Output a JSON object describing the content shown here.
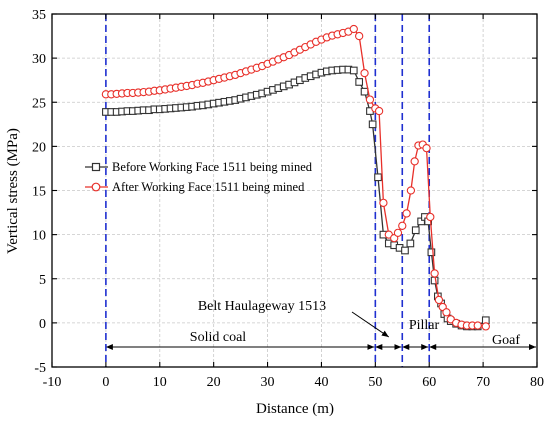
{
  "chart_data": {
    "type": "line",
    "title": "",
    "xlabel": "Distance (m)",
    "ylabel": "Vertical stress (MPa)",
    "xlim": [
      -10,
      80
    ],
    "ylim": [
      -5,
      35
    ],
    "xticks": [
      "-10",
      "0",
      "10",
      "20",
      "30",
      "40",
      "50",
      "60",
      "70",
      "80"
    ],
    "yticks": [
      "-5",
      "0",
      "5",
      "10",
      "15",
      "20",
      "25",
      "30",
      "35"
    ],
    "grid": true,
    "legend_position": "center-left",
    "boundary_lines_x": [
      0,
      50,
      55,
      60
    ],
    "boundary_line_color": "#1f2fd0",
    "series": [
      {
        "name": "Before Working Face 1511 being mined",
        "color": "#333333",
        "marker": "square",
        "points": [
          [
            0,
            23.9
          ],
          [
            1,
            23.9
          ],
          [
            2,
            23.9
          ],
          [
            3,
            23.95
          ],
          [
            4,
            24.0
          ],
          [
            5,
            24.0
          ],
          [
            6,
            24.05
          ],
          [
            7,
            24.1
          ],
          [
            8,
            24.1
          ],
          [
            9,
            24.2
          ],
          [
            10,
            24.2
          ],
          [
            11,
            24.25
          ],
          [
            12,
            24.3
          ],
          [
            13,
            24.35
          ],
          [
            14,
            24.4
          ],
          [
            15,
            24.45
          ],
          [
            16,
            24.5
          ],
          [
            17,
            24.6
          ],
          [
            18,
            24.65
          ],
          [
            19,
            24.75
          ],
          [
            20,
            24.85
          ],
          [
            21,
            24.95
          ],
          [
            22,
            25.05
          ],
          [
            23,
            25.15
          ],
          [
            24,
            25.25
          ],
          [
            25,
            25.4
          ],
          [
            26,
            25.55
          ],
          [
            27,
            25.7
          ],
          [
            28,
            25.85
          ],
          [
            29,
            26.0
          ],
          [
            30,
            26.2
          ],
          [
            31,
            26.4
          ],
          [
            32,
            26.6
          ],
          [
            33,
            26.8
          ],
          [
            34,
            27.0
          ],
          [
            35,
            27.25
          ],
          [
            36,
            27.5
          ],
          [
            37,
            27.75
          ],
          [
            38,
            27.95
          ],
          [
            39,
            28.15
          ],
          [
            40,
            28.35
          ],
          [
            41,
            28.5
          ],
          [
            42,
            28.6
          ],
          [
            43,
            28.65
          ],
          [
            44,
            28.7
          ],
          [
            45,
            28.7
          ],
          [
            46,
            28.6
          ],
          [
            47,
            27.3
          ],
          [
            48,
            26.2
          ],
          [
            49,
            24.0
          ],
          [
            49.5,
            22.5
          ],
          [
            50.5,
            16.5
          ],
          [
            51.5,
            10.0
          ],
          [
            52.5,
            9.0
          ],
          [
            53.5,
            8.8
          ],
          [
            54.5,
            8.5
          ],
          [
            55.5,
            8.2
          ],
          [
            56.5,
            9.0
          ],
          [
            57.5,
            10.5
          ],
          [
            58.5,
            11.5
          ],
          [
            59.2,
            12.0
          ],
          [
            59.8,
            11.5
          ],
          [
            60.4,
            8.0
          ],
          [
            61,
            4.8
          ],
          [
            61.6,
            3.0
          ],
          [
            62.2,
            2.2
          ],
          [
            62.8,
            1.0
          ],
          [
            63.4,
            0.5
          ],
          [
            64,
            0.2
          ],
          [
            65,
            -0.1
          ],
          [
            66,
            -0.3
          ],
          [
            67,
            -0.4
          ],
          [
            68,
            -0.4
          ],
          [
            69,
            -0.4
          ],
          [
            70.5,
            0.3
          ]
        ]
      },
      {
        "name": "After Working Face 1511 being mined",
        "color": "#e8302a",
        "marker": "circle",
        "points": [
          [
            0,
            25.9
          ],
          [
            1,
            25.9
          ],
          [
            2,
            25.95
          ],
          [
            3,
            26.0
          ],
          [
            4,
            26.05
          ],
          [
            5,
            26.05
          ],
          [
            6,
            26.1
          ],
          [
            7,
            26.15
          ],
          [
            8,
            26.2
          ],
          [
            9,
            26.3
          ],
          [
            10,
            26.35
          ],
          [
            11,
            26.45
          ],
          [
            12,
            26.55
          ],
          [
            13,
            26.65
          ],
          [
            14,
            26.75
          ],
          [
            15,
            26.85
          ],
          [
            16,
            26.95
          ],
          [
            17,
            27.1
          ],
          [
            18,
            27.2
          ],
          [
            19,
            27.35
          ],
          [
            20,
            27.5
          ],
          [
            21,
            27.65
          ],
          [
            22,
            27.8
          ],
          [
            23,
            27.95
          ],
          [
            24,
            28.1
          ],
          [
            25,
            28.3
          ],
          [
            26,
            28.5
          ],
          [
            27,
            28.7
          ],
          [
            28,
            28.9
          ],
          [
            29,
            29.1
          ],
          [
            30,
            29.35
          ],
          [
            31,
            29.6
          ],
          [
            32,
            29.85
          ],
          [
            33,
            30.1
          ],
          [
            34,
            30.35
          ],
          [
            35,
            30.65
          ],
          [
            36,
            30.95
          ],
          [
            37,
            31.25
          ],
          [
            38,
            31.55
          ],
          [
            39,
            31.85
          ],
          [
            40,
            32.1
          ],
          [
            41,
            32.35
          ],
          [
            42,
            32.55
          ],
          [
            43,
            32.7
          ],
          [
            44,
            32.85
          ],
          [
            45,
            33.0
          ],
          [
            46,
            33.3
          ],
          [
            47,
            32.5
          ],
          [
            48,
            28.3
          ],
          [
            49,
            25.3
          ],
          [
            50,
            24.3
          ],
          [
            50.7,
            24.0
          ],
          [
            51.5,
            13.6
          ],
          [
            52.5,
            10.0
          ],
          [
            53.5,
            9.6
          ],
          [
            54.2,
            10.2
          ],
          [
            55,
            11.0
          ],
          [
            55.8,
            12.4
          ],
          [
            56.6,
            15.0
          ],
          [
            57.3,
            18.3
          ],
          [
            58,
            20.1
          ],
          [
            58.8,
            20.2
          ],
          [
            59.5,
            19.8
          ],
          [
            60.2,
            12.0
          ],
          [
            61,
            5.6
          ],
          [
            61.8,
            2.6
          ],
          [
            62.5,
            1.8
          ],
          [
            63.2,
            1.2
          ],
          [
            64,
            0.4
          ],
          [
            65,
            0.0
          ],
          [
            66,
            -0.2
          ],
          [
            67,
            -0.3
          ],
          [
            68,
            -0.3
          ],
          [
            69,
            -0.3
          ],
          [
            70.5,
            -0.4
          ]
        ]
      }
    ],
    "annotations": {
      "belt": "Belt Haulageway 1513",
      "solid_coal": "Solid coal",
      "pillar": "Pillar",
      "goaf": "Goaf"
    }
  }
}
